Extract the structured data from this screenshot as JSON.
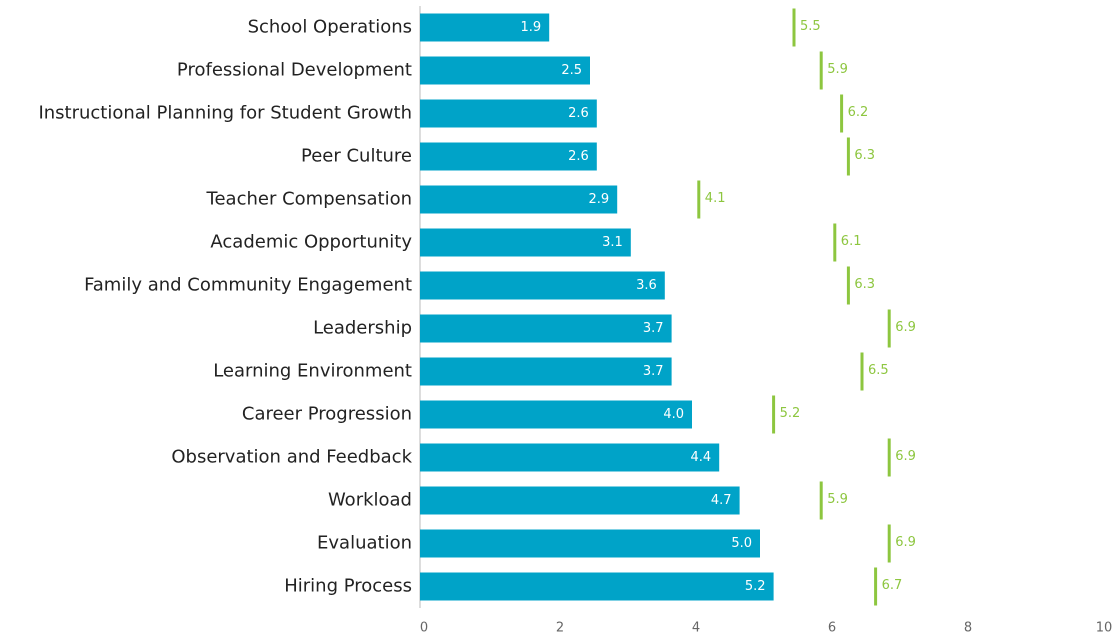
{
  "chart_data": {
    "type": "bar",
    "orientation": "horizontal",
    "categories": [
      "School Operations",
      "Professional Development",
      "Instructional Planning for Student Growth",
      "Peer Culture",
      "Teacher Compensation",
      "Academic Opportunity",
      "Family and Community Engagement",
      "Leadership",
      "Learning Environment",
      "Career Progression",
      "Observation and Feedback",
      "Workload",
      "Evaluation",
      "Hiring Process"
    ],
    "series": [
      {
        "color": "#00a3c8",
        "marker": "bar",
        "values": [
          1.9,
          2.5,
          2.6,
          2.6,
          2.9,
          3.1,
          3.6,
          3.7,
          3.7,
          4.0,
          4.4,
          4.7,
          5.0,
          5.2
        ],
        "value_labels": [
          "1.9",
          "2.5",
          "2.6",
          "2.6",
          "2.9",
          "3.1",
          "3.6",
          "3.7",
          "3.7",
          "4.0",
          "4.4",
          "4.7",
          "5.0",
          "5.2"
        ]
      },
      {
        "color": "#8dc63f",
        "marker": "line",
        "values": [
          5.5,
          5.9,
          6.2,
          6.3,
          4.1,
          6.1,
          6.3,
          6.9,
          6.5,
          5.2,
          6.9,
          5.9,
          6.9,
          6.7
        ]
      }
    ],
    "xlim": [
      0,
      10
    ],
    "xticks": [
      0,
      2,
      4,
      6,
      8,
      10
    ],
    "grid": false
  }
}
